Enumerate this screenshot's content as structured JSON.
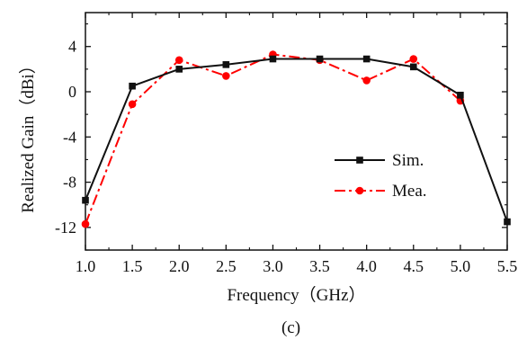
{
  "chart_data": {
    "type": "line",
    "xlabel": "Frequency（GHz）",
    "ylabel": "Realized Gain（dBi）",
    "caption": "(c)",
    "xlim": [
      1.0,
      5.5
    ],
    "ylim": [
      -14,
      7
    ],
    "xticks": [
      1.0,
      1.5,
      2.0,
      2.5,
      3.0,
      3.5,
      4.0,
      4.5,
      5.0,
      5.5
    ],
    "xtick_labels": [
      "1.0",
      "1.5",
      "2.0",
      "2.5",
      "3.0",
      "3.5",
      "4.0",
      "4.5",
      "5.0",
      "5.5"
    ],
    "yticks": [
      4,
      0,
      -4,
      -8,
      -12
    ],
    "ytick_labels": [
      "4",
      "0",
      "-4",
      "-8",
      "-12"
    ],
    "grid": false,
    "legend_position": "bottom-right",
    "series": [
      {
        "name": "Sim.",
        "color": "#111111",
        "line_style": "solid",
        "marker": "square",
        "x": [
          1.0,
          1.5,
          2.0,
          2.5,
          3.0,
          3.5,
          4.0,
          4.5,
          5.0,
          5.5
        ],
        "y": [
          -9.6,
          0.5,
          2.0,
          2.4,
          2.9,
          2.9,
          2.9,
          2.2,
          -0.3,
          -11.5
        ]
      },
      {
        "name": "Mea.",
        "color": "#ff0000",
        "line_style": "dash-dot",
        "marker": "circle",
        "x": [
          1.0,
          1.5,
          2.0,
          2.5,
          3.0,
          3.5,
          4.0,
          4.5,
          5.0
        ],
        "y": [
          -11.7,
          -1.1,
          2.8,
          1.4,
          3.3,
          2.8,
          1.0,
          2.9,
          -0.8
        ]
      }
    ]
  }
}
